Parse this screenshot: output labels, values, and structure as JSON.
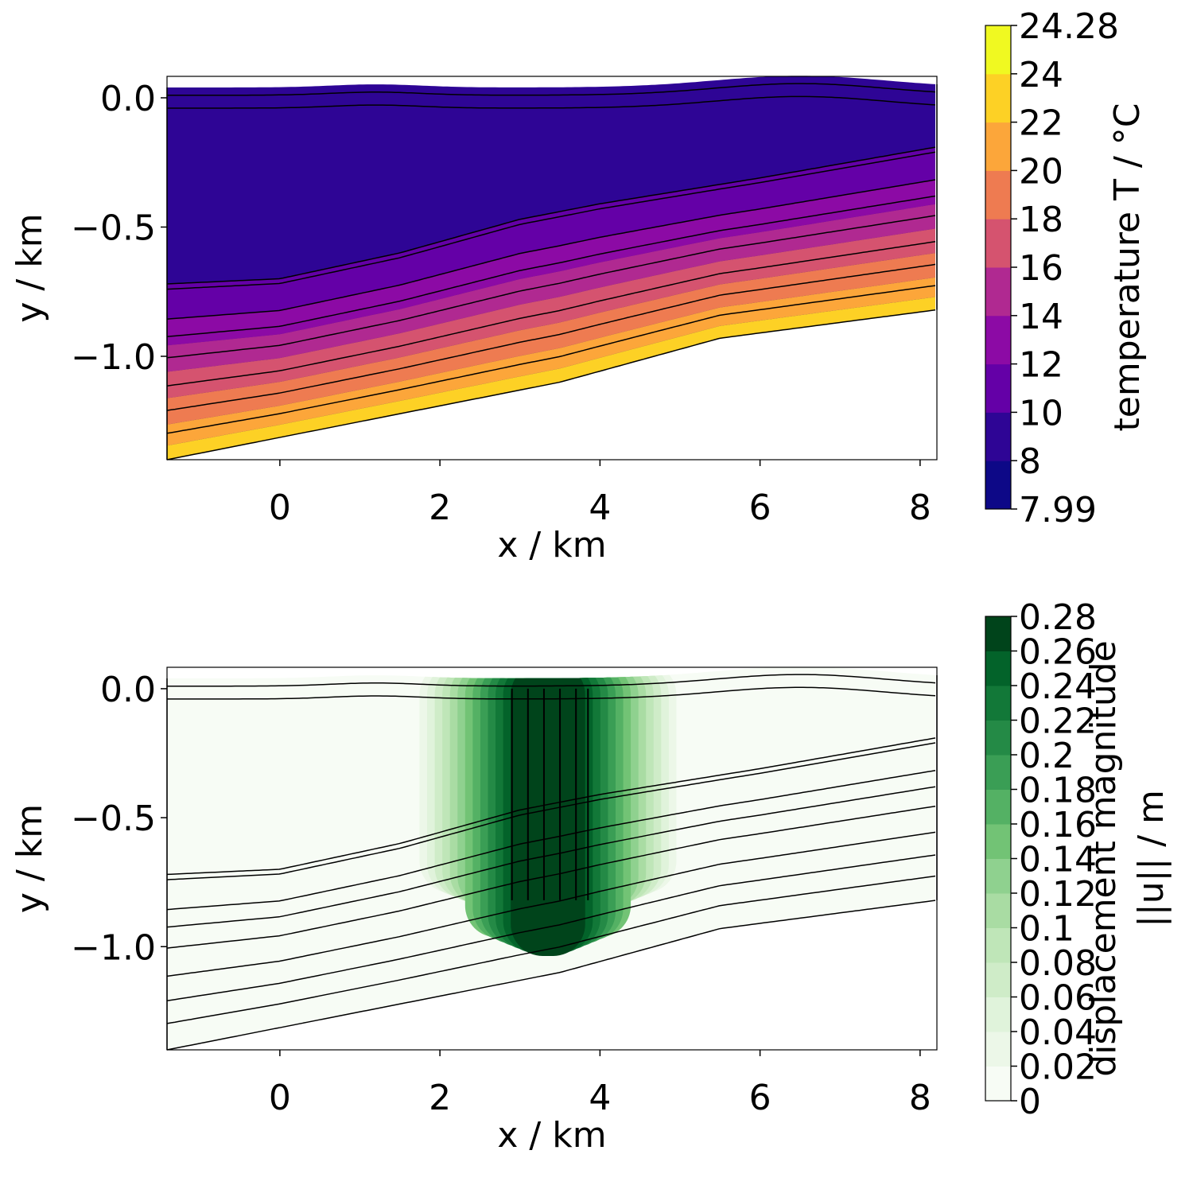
{
  "chart_data": [
    {
      "type": "contour",
      "xlabel": "x / km",
      "ylabel": "y / km",
      "xlim": [
        -1.41,
        8.21
      ],
      "ylim": [
        -1.4,
        0.083
      ],
      "xticks": [
        0,
        2,
        4,
        6,
        8
      ],
      "yticks": [
        {
          "value": 0,
          "label": "0.0"
        },
        {
          "value": -0.5,
          "label": "−0.5"
        },
        {
          "value": -1,
          "label": "−1.0"
        }
      ],
      "colorbar": {
        "label": [
          "temperature T / °C"
        ],
        "levels": [
          7.99,
          8,
          10,
          12,
          14,
          16,
          18,
          20,
          22,
          24,
          24.28
        ],
        "colors": [
          "#0d0887",
          "#2e0595",
          "#6400a7",
          "#8c0aa5",
          "#b02991",
          "#d5536f",
          "#ee7b51",
          "#fca63a",
          "#fdd125",
          "#f0f921"
        ]
      }
    },
    {
      "type": "contour",
      "xlabel": "x / km",
      "ylabel": "y / km",
      "xlim": [
        -1.41,
        8.21
      ],
      "ylim": [
        -1.4,
        0.083
      ],
      "xticks": [
        0,
        2,
        4,
        6,
        8
      ],
      "yticks": [
        {
          "value": 0,
          "label": "0.0"
        },
        {
          "value": -0.5,
          "label": "−0.5"
        },
        {
          "value": -1,
          "label": "−1.0"
        }
      ],
      "colorbar": {
        "label": [
          "displacement magnitude",
          "||u|| / m"
        ],
        "levels": [
          0,
          0.02,
          0.04,
          0.06,
          0.08,
          0.1,
          0.12,
          0.14,
          0.16,
          0.18,
          0.2,
          0.22,
          0.24,
          0.26,
          0.28
        ],
        "colors": [
          "#f7fcf5",
          "#ecf7e8",
          "#e0f3db",
          "#cfecc8",
          "#bfe6b8",
          "#a9dca3",
          "#8fd18f",
          "#72c375",
          "#54b164",
          "#3a9e55",
          "#248a46",
          "#127838",
          "#03632a",
          "#00441b"
        ]
      }
    }
  ]
}
